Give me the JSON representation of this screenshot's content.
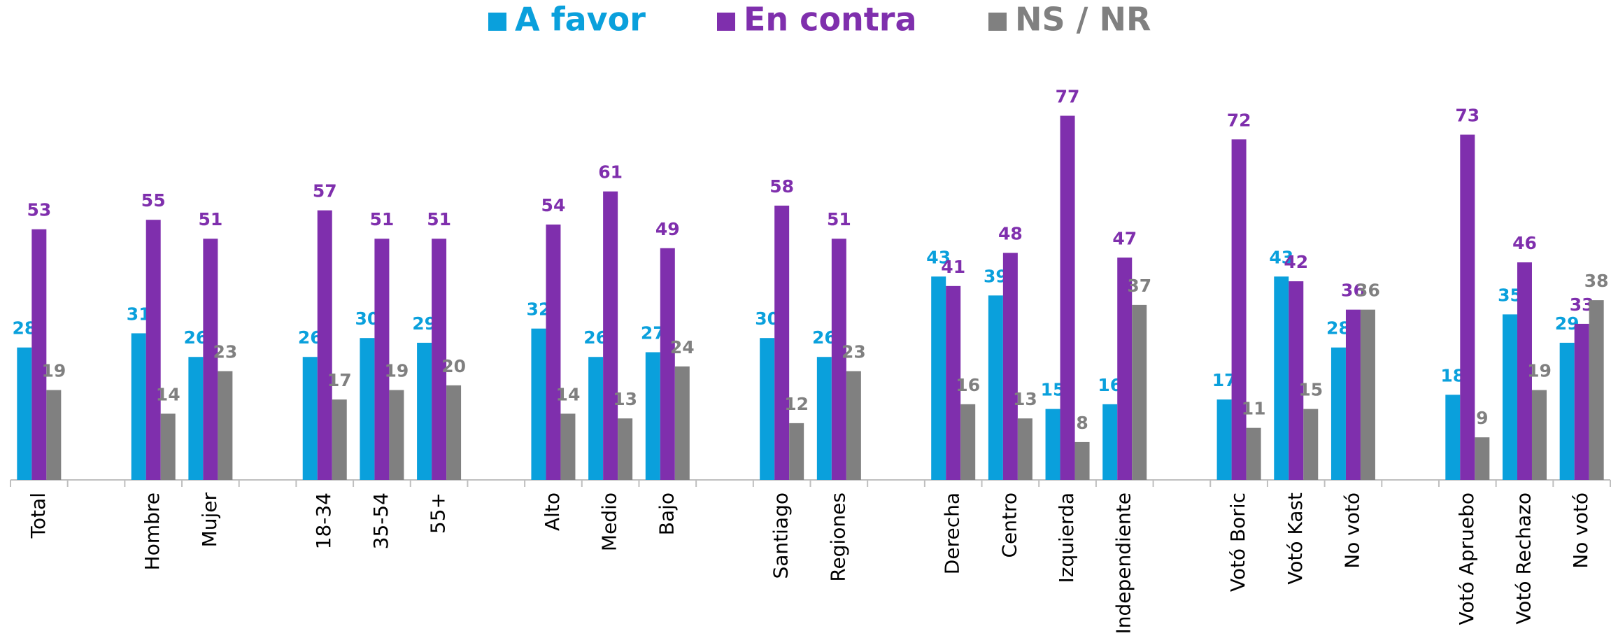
{
  "chart_data": {
    "type": "bar",
    "categories": [
      "Total",
      null,
      "Hombre",
      "Mujer",
      null,
      "18-34",
      "35-54",
      "55+",
      null,
      "Alto",
      "Medio",
      "Bajo",
      null,
      "Santiago",
      "Regiones",
      null,
      "Derecha",
      "Centro",
      "Izquierda",
      "Independiente",
      null,
      "Votó Boric",
      "Votó Kast",
      "No votó",
      null,
      "Votó Apruebo",
      "Votó Rechazo",
      "No votó"
    ],
    "series": [
      {
        "name": "A favor",
        "color": "#0aa0dc",
        "values": [
          28,
          null,
          31,
          26,
          null,
          26,
          30,
          29,
          null,
          32,
          26,
          27,
          null,
          30,
          26,
          null,
          43,
          39,
          15,
          16,
          null,
          17,
          43,
          28,
          null,
          18,
          35,
          29
        ]
      },
      {
        "name": "En contra",
        "color": "#7f2fad",
        "values": [
          53,
          null,
          55,
          51,
          null,
          57,
          51,
          51,
          null,
          54,
          61,
          49,
          null,
          58,
          51,
          null,
          41,
          48,
          77,
          47,
          null,
          72,
          42,
          36,
          null,
          73,
          46,
          33
        ]
      },
      {
        "name": "NS / NR",
        "color": "#808080",
        "values": [
          19,
          null,
          14,
          23,
          null,
          17,
          19,
          20,
          null,
          14,
          13,
          24,
          null,
          12,
          23,
          null,
          16,
          13,
          8,
          37,
          null,
          11,
          15,
          36,
          null,
          9,
          19,
          38
        ]
      }
    ],
    "ylim": [
      0,
      100
    ]
  }
}
